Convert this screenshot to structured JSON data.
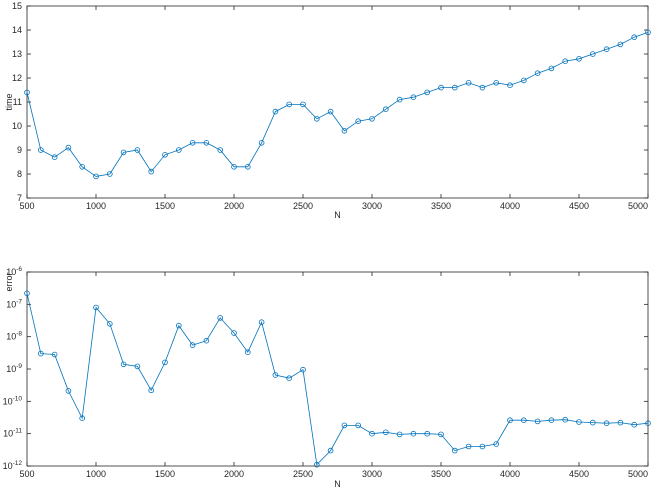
{
  "chart_data": [
    {
      "type": "line",
      "xlabel": "N",
      "ylabel": "time",
      "xlim": [
        500,
        5000
      ],
      "ylim": [
        7,
        15
      ],
      "yscale": "linear",
      "grid": false,
      "xticks": [
        500,
        1000,
        1500,
        2000,
        2500,
        3000,
        3500,
        4000,
        4500,
        5000
      ],
      "yticks": [
        7,
        8,
        9,
        10,
        11,
        12,
        13,
        14,
        15
      ],
      "x": [
        500,
        600,
        700,
        800,
        900,
        1000,
        1100,
        1200,
        1300,
        1400,
        1500,
        1600,
        1700,
        1800,
        1900,
        2000,
        2100,
        2200,
        2300,
        2400,
        2500,
        2600,
        2700,
        2800,
        2900,
        3000,
        3100,
        3200,
        3300,
        3400,
        3500,
        3600,
        3700,
        3800,
        3900,
        4000,
        4100,
        4200,
        4300,
        4400,
        4500,
        4600,
        4700,
        4800,
        4900,
        5000
      ],
      "series": [
        {
          "color": "#0072bd",
          "marker": "circle",
          "values": [
            11.4,
            9.0,
            8.7,
            9.1,
            8.3,
            7.9,
            8.0,
            8.9,
            9.0,
            8.1,
            8.8,
            9.0,
            9.3,
            9.3,
            9.0,
            8.3,
            8.3,
            9.3,
            10.6,
            10.9,
            10.9,
            10.3,
            10.6,
            9.8,
            10.2,
            10.3,
            10.7,
            11.1,
            11.2,
            11.4,
            11.6,
            11.6,
            11.8,
            11.6,
            11.8,
            11.7,
            11.9,
            12.2,
            12.4,
            12.7,
            12.8,
            13.0,
            13.2,
            13.4,
            13.7,
            13.9
          ]
        }
      ]
    },
    {
      "type": "line",
      "xlabel": "N",
      "ylabel": "error",
      "xlim": [
        500,
        5000
      ],
      "ylim": [
        1e-12,
        1e-06
      ],
      "yscale": "log",
      "grid": false,
      "xticks": [
        500,
        1000,
        1500,
        2000,
        2500,
        3000,
        3500,
        4000,
        4500,
        5000
      ],
      "yticks": [
        {
          "base": "10",
          "exp": "-12"
        },
        {
          "base": "10",
          "exp": "-11"
        },
        {
          "base": "10",
          "exp": "-10"
        },
        {
          "base": "10",
          "exp": "-9"
        },
        {
          "base": "10",
          "exp": "-8"
        },
        {
          "base": "10",
          "exp": "-7"
        },
        {
          "base": "10",
          "exp": "-6"
        }
      ],
      "x": [
        500,
        600,
        700,
        800,
        900,
        1000,
        1100,
        1200,
        1300,
        1400,
        1500,
        1600,
        1700,
        1800,
        1900,
        2000,
        2100,
        2200,
        2300,
        2400,
        2500,
        2600,
        2700,
        2800,
        2900,
        3000,
        3100,
        3200,
        3300,
        3400,
        3500,
        3600,
        3700,
        3800,
        3900,
        4000,
        4100,
        4200,
        4300,
        4400,
        4500,
        4600,
        4700,
        4800,
        4900,
        5000
      ],
      "series": [
        {
          "color": "#0072bd",
          "marker": "circle",
          "values": [
            2.2e-07,
            3e-09,
            2.8e-09,
            2.1e-10,
            3e-11,
            8e-08,
            2.5e-08,
            1.4e-09,
            1.2e-09,
            2.2e-10,
            1.6e-09,
            2.2e-08,
            5.5e-09,
            7.5e-09,
            3.8e-08,
            1.3e-08,
            3.3e-09,
            2.8e-08,
            6.5e-10,
            5.2e-10,
            9.5e-10,
            1.1e-12,
            3e-12,
            1.8e-11,
            1.8e-11,
            1e-11,
            1.1e-11,
            9.5e-12,
            1e-11,
            1e-11,
            9.5e-12,
            3e-12,
            4e-12,
            4e-12,
            4.8e-12,
            2.6e-11,
            2.6e-11,
            2.4e-11,
            2.6e-11,
            2.7e-11,
            2.3e-11,
            2.2e-11,
            2.1e-11,
            2.2e-11,
            1.9e-11,
            2.1e-11
          ]
        }
      ]
    }
  ]
}
